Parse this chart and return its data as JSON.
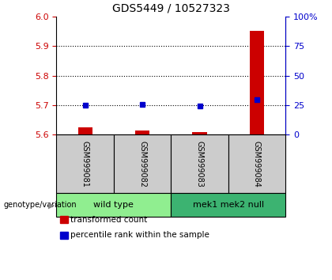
{
  "title": "GDS5449 / 10527323",
  "samples": [
    "GSM999081",
    "GSM999082",
    "GSM999083",
    "GSM999084"
  ],
  "transformed_counts": [
    5.625,
    5.613,
    5.607,
    5.953
  ],
  "percentile_ranks": [
    25.0,
    25.2,
    24.3,
    29.5
  ],
  "ylim_left": [
    5.6,
    6.0
  ],
  "ylim_right": [
    0,
    100
  ],
  "yticks_left": [
    5.6,
    5.7,
    5.8,
    5.9,
    6.0
  ],
  "yticks_right": [
    0,
    25,
    50,
    75,
    100
  ],
  "ytick_labels_right": [
    "0",
    "25",
    "50",
    "75",
    "100%"
  ],
  "groups": [
    {
      "label": "wild type",
      "samples": [
        0,
        1
      ],
      "color": "#90ee90"
    },
    {
      "label": "mek1 mek2 null",
      "samples": [
        2,
        3
      ],
      "color": "#3cb371"
    }
  ],
  "bar_color": "#cc0000",
  "dot_color": "#0000cc",
  "bar_baseline": 5.6,
  "left_axis_color": "#cc0000",
  "right_axis_color": "#0000cc",
  "sample_box_color": "#cccccc",
  "genotype_label": "genotype/variation",
  "legend_items": [
    {
      "color": "#cc0000",
      "label": "transformed count"
    },
    {
      "color": "#0000cc",
      "label": "percentile rank within the sample"
    }
  ],
  "bar_width": 0.25
}
